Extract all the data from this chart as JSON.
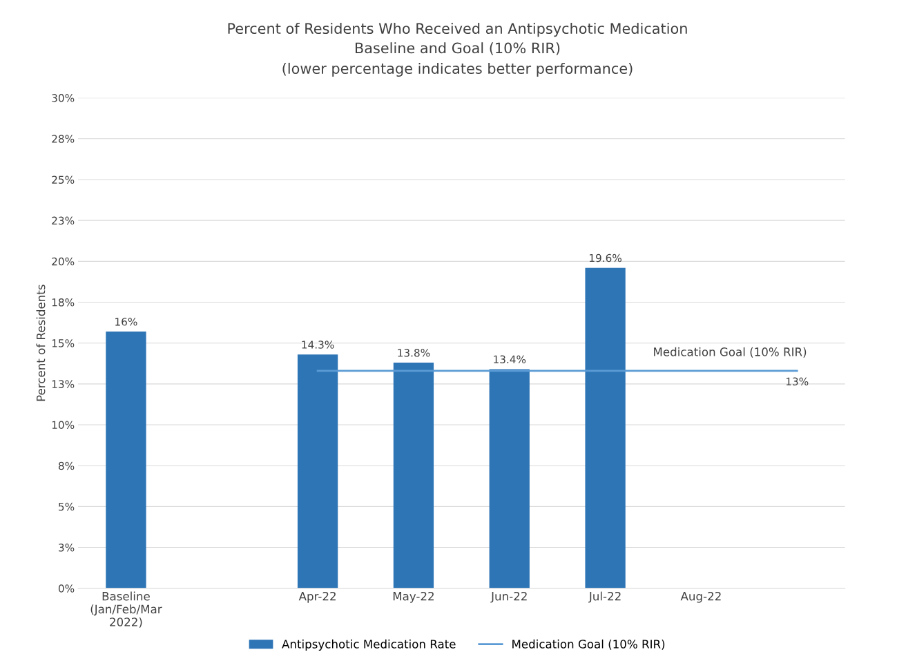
{
  "chart_data": {
    "type": "bar",
    "title": "Percent of Residents Who Received an Antipsychotic Medication",
    "subtitle": "Baseline and Goal (10% RIR)\n(lower percentage indicates better performance)",
    "ylabel": "Percent of Residents",
    "categories": [
      "Baseline\n(Jan/Feb/Mar\n2022)",
      null,
      "Apr-22",
      "May-22",
      "Jun-22",
      "Jul-22",
      "Aug-22",
      null
    ],
    "series": [
      {
        "name": "Antipsychotic Medication Rate",
        "color": "#2e75b6",
        "values": [
          15.7,
          null,
          14.3,
          13.8,
          13.4,
          19.6,
          null,
          null
        ],
        "value_labels": [
          "16%",
          null,
          "14.3%",
          "13.8%",
          "13.4%",
          "19.6%",
          null,
          null
        ]
      },
      {
        "name": "Medication Goal (10% RIR)",
        "type": "line",
        "color": "#5b9bd5",
        "values": [
          null,
          null,
          13.3,
          13.3,
          13.3,
          13.3,
          13.3,
          13.3
        ],
        "value_labels": [
          null,
          null,
          null,
          null,
          null,
          null,
          null,
          "13%"
        ]
      }
    ],
    "annotations": [
      "Medication Goal (10% RIR)"
    ],
    "ylim": [
      0,
      30
    ],
    "yticks": [
      {
        "value": 0,
        "label": "0%"
      },
      {
        "value": 2.5,
        "label": "3%"
      },
      {
        "value": 5,
        "label": "5%"
      },
      {
        "value": 7.5,
        "label": "8%"
      },
      {
        "value": 10,
        "label": "10%"
      },
      {
        "value": 12.5,
        "label": "13%"
      },
      {
        "value": 15,
        "label": "15%"
      },
      {
        "value": 17.5,
        "label": "18%"
      },
      {
        "value": 20,
        "label": "20%"
      },
      {
        "value": 22.5,
        "label": "23%"
      },
      {
        "value": 25,
        "label": "25%"
      },
      {
        "value": 27.5,
        "label": "28%"
      },
      {
        "value": 30,
        "label": "30%"
      }
    ],
    "grid": "y",
    "legend": "bottom",
    "marker": "none",
    "line_style": "solid"
  }
}
